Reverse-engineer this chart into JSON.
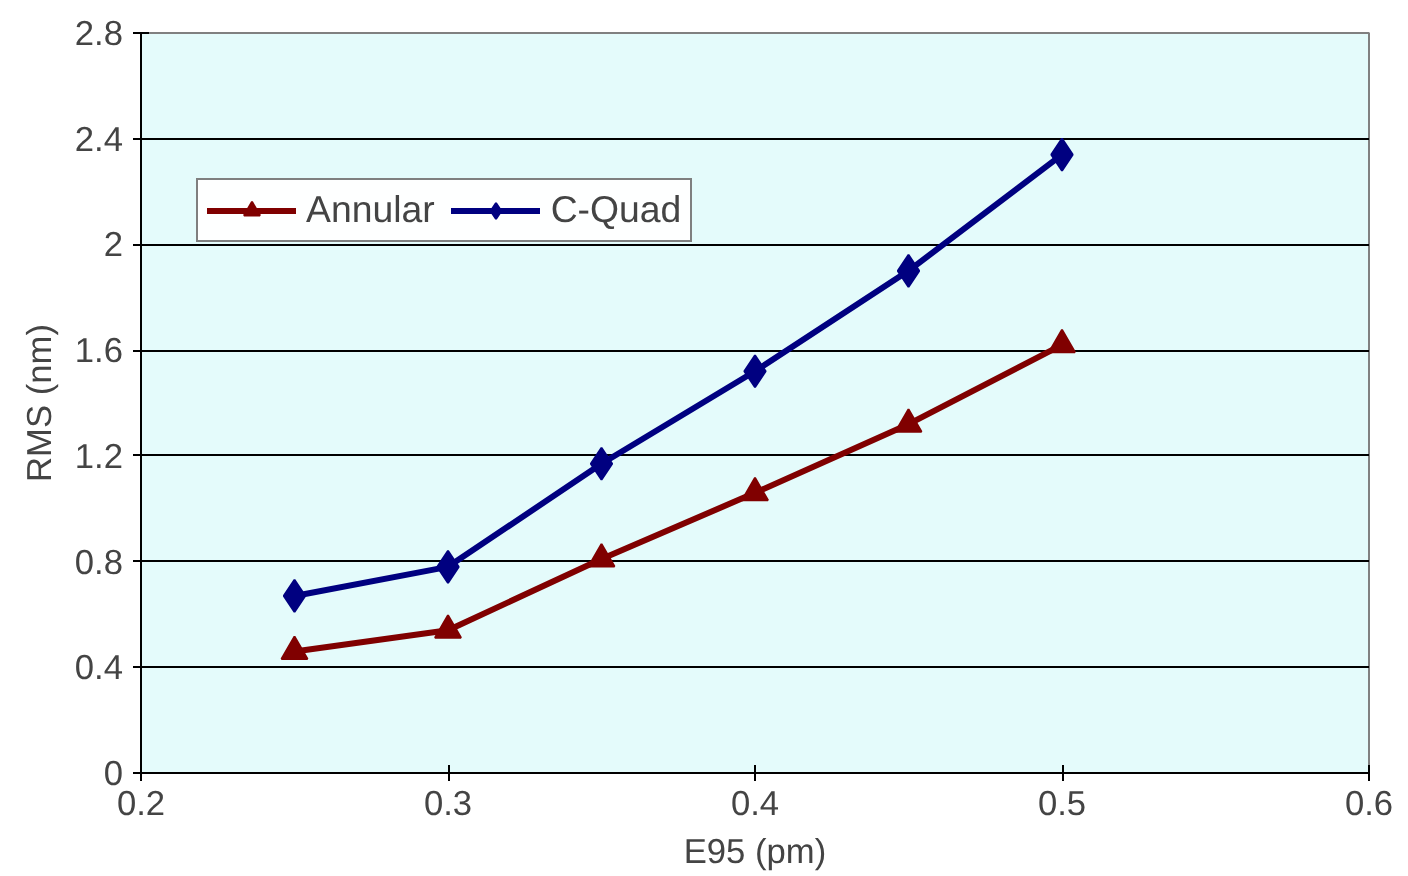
{
  "chart_data": {
    "type": "line",
    "xlabel": "E95 (pm)",
    "ylabel": "RMS (nm)",
    "x": [
      0.25,
      0.3,
      0.35,
      0.4,
      0.45,
      0.5
    ],
    "series": [
      {
        "name": "Annular",
        "color": "#800000",
        "marker": "triangle",
        "values": [
          0.46,
          0.54,
          0.81,
          1.06,
          1.32,
          1.62
        ]
      },
      {
        "name": "C-Quad",
        "color": "#000080",
        "marker": "diamond",
        "values": [
          0.67,
          0.78,
          1.17,
          1.52,
          1.9,
          2.34
        ]
      }
    ],
    "xlim": [
      0.2,
      0.6
    ],
    "xticks": [
      0.2,
      0.3,
      0.4,
      0.5,
      0.6
    ],
    "ylim": [
      0,
      2.8
    ],
    "yticks": [
      0,
      0.4,
      0.8,
      1.2,
      1.6,
      2,
      2.4,
      2.8
    ],
    "grid": "y",
    "legend": "top left",
    "line_style": "solid"
  }
}
